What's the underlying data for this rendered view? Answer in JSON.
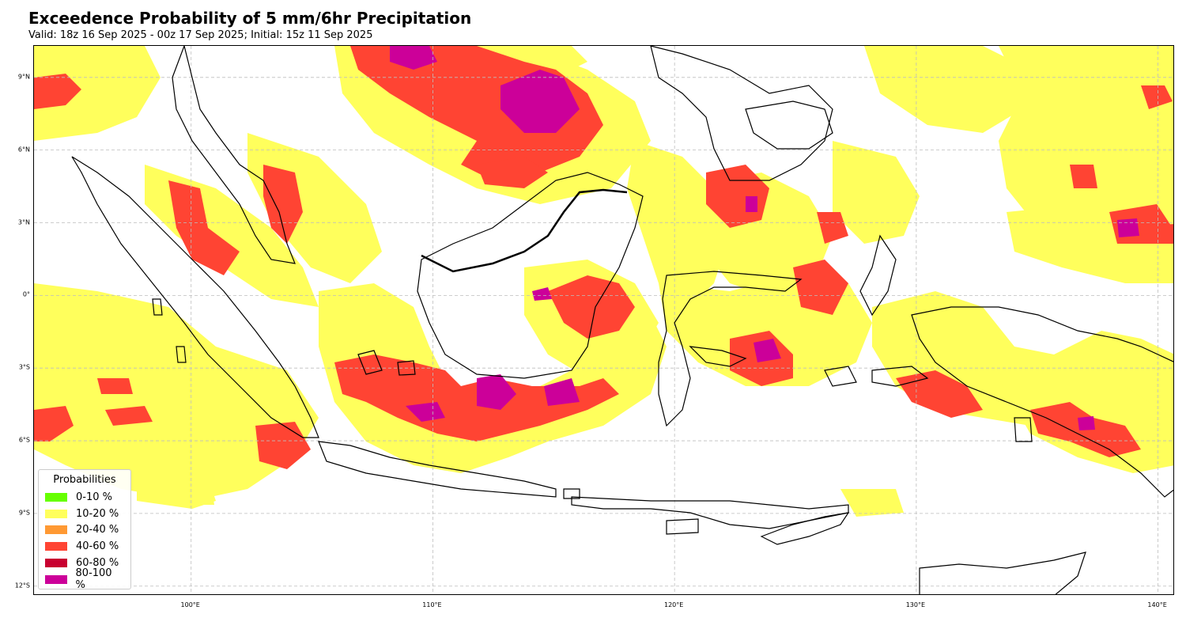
{
  "title": "Exceedence Probability of 5 mm/6hr Precipitation",
  "subtitle": "Valid: 18z 16 Sep 2025 - 00z 17 Sep 2025; Initial: 15z 11 Sep 2025",
  "map": {
    "lat_ticks": [
      {
        "value": 9,
        "label": "9°N"
      },
      {
        "value": 6,
        "label": "6°N"
      },
      {
        "value": 3,
        "label": "3°N"
      },
      {
        "value": 0,
        "label": "0°"
      },
      {
        "value": -3,
        "label": "3°S"
      },
      {
        "value": -6,
        "label": "6°S"
      },
      {
        "value": -9,
        "label": "9°S"
      },
      {
        "value": -12,
        "label": "12°S"
      }
    ],
    "lon_ticks": [
      {
        "value": 100,
        "label": "100°E"
      },
      {
        "value": 110,
        "label": "110°E"
      },
      {
        "value": 120,
        "label": "120°E"
      },
      {
        "value": 130,
        "label": "130°E"
      },
      {
        "value": 140,
        "label": "140°E"
      }
    ],
    "extent": {
      "lon_min": 93.5,
      "lon_max": 140.7,
      "lat_min": -12.4,
      "lat_max": 10.3
    }
  },
  "legend": {
    "title": "Probabilities",
    "items": [
      {
        "label": "0-10 %",
        "color": "#66ff00"
      },
      {
        "label": "10-20 %",
        "color": "#ffff5c"
      },
      {
        "label": "20-40 %",
        "color": "#ff9933"
      },
      {
        "label": "40-60 %",
        "color": "#ff4433"
      },
      {
        "label": "60-80 %",
        "color": "#c80030"
      },
      {
        "label": "80-100 %",
        "color": "#cc0099"
      }
    ]
  }
}
